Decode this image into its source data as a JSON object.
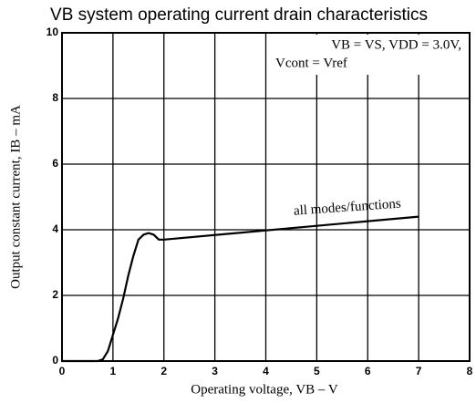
{
  "chart_data": {
    "type": "line",
    "title": "VB system operating current drain characteristics",
    "x_label": "Operating voltage, VB – V",
    "y_label": "Output constant current, IB – mA",
    "annotations": [
      "VB = VS, VDD = 3.0V,",
      "Vcont = Vref",
      "all modes/functions"
    ],
    "x": [
      0,
      0.7,
      0.8,
      0.9,
      1.0,
      1.1,
      1.2,
      1.3,
      1.4,
      1.5,
      1.6,
      1.7,
      1.8,
      1.9,
      2.0,
      7.0
    ],
    "series": [
      {
        "color": "#000000",
        "values": [
          0,
          0,
          0.05,
          0.3,
          0.8,
          1.3,
          1.9,
          2.6,
          3.2,
          3.7,
          3.85,
          3.9,
          3.85,
          3.7,
          3.7,
          4.4
        ]
      }
    ],
    "xlim": [
      0,
      8
    ],
    "xticks": [
      0,
      1,
      2,
      3,
      4,
      5,
      6,
      7,
      8
    ],
    "ylim": [
      0,
      10
    ],
    "yticks": [
      0,
      2,
      4,
      6,
      8,
      10
    ],
    "grid": true
  }
}
